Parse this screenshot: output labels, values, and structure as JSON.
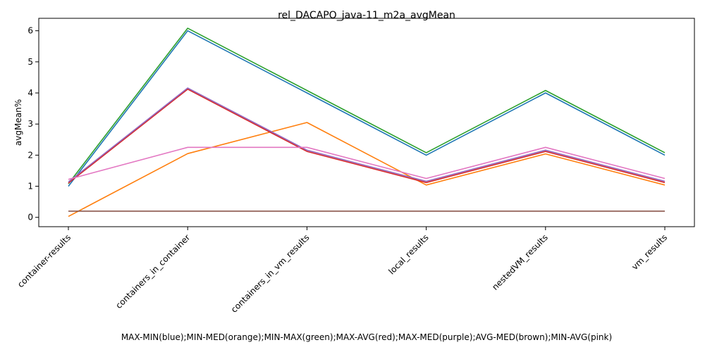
{
  "chart_data": {
    "type": "line",
    "title": "rel_DACAPO_java-11_m2a_avgMean",
    "xlabel": "MAX-MIN(blue);MIN-MED(orange);MIN-MAX(green);MAX-AVG(red);MAX-MED(purple);AVG-MED(brown);MIN-AVG(pink)",
    "ylabel": "avgMean%",
    "categories": [
      "container-results",
      "containers_in_container",
      "containers_in_vm_results",
      "local_results",
      "nestedVM_results",
      "vm_results"
    ],
    "ylim": [
      -0.3,
      6.4
    ],
    "yticks": [
      0,
      1,
      2,
      3,
      4,
      5,
      6
    ],
    "grid": false,
    "series": [
      {
        "color": "#1f77b4",
        "values": [
          1.0,
          6.0,
          4.0,
          2.0,
          4.0,
          2.0
        ]
      },
      {
        "color": "#ff7f0e",
        "values": [
          0.03,
          2.05,
          3.05,
          1.04,
          2.04,
          1.04
        ]
      },
      {
        "color": "#2ca02c",
        "values": [
          1.08,
          6.08,
          4.08,
          2.08,
          4.08,
          2.08
        ]
      },
      {
        "color": "#d62728",
        "values": [
          1.1,
          4.12,
          2.12,
          1.12,
          2.12,
          1.12
        ]
      },
      {
        "color": "#9467bd",
        "values": [
          1.14,
          4.16,
          2.16,
          1.16,
          2.16,
          1.16
        ]
      },
      {
        "color": "#8c564b",
        "values": [
          0.2,
          0.2,
          0.2,
          0.2,
          0.2,
          0.2
        ]
      },
      {
        "color": "#e377c2",
        "values": [
          1.22,
          2.25,
          2.25,
          1.25,
          2.25,
          1.25
        ]
      }
    ]
  }
}
